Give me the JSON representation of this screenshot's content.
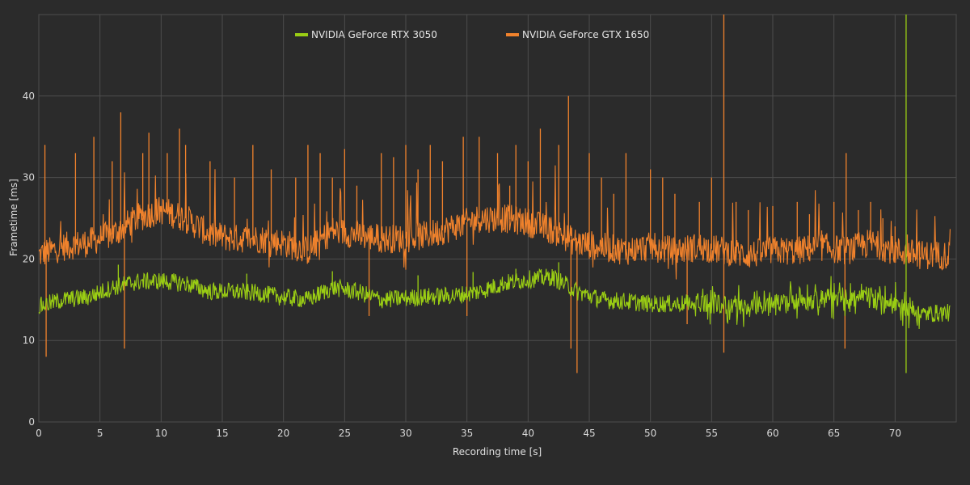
{
  "chart_data": {
    "type": "line",
    "xlabel": "Recording time [s]",
    "ylabel": "Frametime [ms]",
    "xlim": [
      0,
      75
    ],
    "ylim": [
      0,
      50
    ],
    "x_ticks": [
      "0",
      "5",
      "10",
      "15",
      "20",
      "25",
      "30",
      "35",
      "40",
      "45",
      "50",
      "55",
      "60",
      "65",
      "70"
    ],
    "y_ticks": [
      "0",
      "10",
      "20",
      "30",
      "40"
    ],
    "grid": true,
    "legend_position": "top-center",
    "series": [
      {
        "name": "NVIDIA GeForce RTX 3050",
        "color": "#9acd14",
        "baseline": [
          [
            0,
            14.2
          ],
          [
            2,
            15
          ],
          [
            4,
            15.3
          ],
          [
            6,
            16.5
          ],
          [
            8,
            17.2
          ],
          [
            10,
            17.3
          ],
          [
            12,
            17
          ],
          [
            14,
            16
          ],
          [
            16,
            16
          ],
          [
            18,
            15.8
          ],
          [
            20,
            15.3
          ],
          [
            22,
            15
          ],
          [
            24,
            16.5
          ],
          [
            26,
            16
          ],
          [
            28,
            15
          ],
          [
            30,
            15.2
          ],
          [
            32,
            15.4
          ],
          [
            34,
            15.5
          ],
          [
            36,
            16
          ],
          [
            38,
            17
          ],
          [
            40,
            17.5
          ],
          [
            42,
            17.8
          ],
          [
            44,
            16
          ],
          [
            46,
            15
          ],
          [
            48,
            14.8
          ],
          [
            50,
            14.5
          ],
          [
            52,
            14.5
          ],
          [
            54,
            14.6
          ],
          [
            56,
            14.4
          ],
          [
            58,
            14.2
          ],
          [
            60,
            14.5
          ],
          [
            62,
            14.8
          ],
          [
            64,
            15
          ],
          [
            66,
            15.2
          ],
          [
            68,
            15
          ],
          [
            70,
            14.6
          ],
          [
            72,
            13.2
          ],
          [
            74,
            13.4
          ]
        ],
        "spikes": [
          [
            6.5,
            19.3
          ],
          [
            17,
            18.2
          ],
          [
            24,
            18.5
          ],
          [
            31,
            18
          ],
          [
            35.5,
            18.4
          ],
          [
            39,
            18.8
          ],
          [
            42.5,
            19.6
          ],
          [
            70.9,
            50
          ],
          [
            70.9,
            6
          ]
        ]
      },
      {
        "name": "NVIDIA GeForce GTX 1650",
        "color": "#f0822c",
        "baseline": [
          [
            0,
            20.5
          ],
          [
            1,
            21
          ],
          [
            2,
            21.5
          ],
          [
            4,
            22
          ],
          [
            6,
            23
          ],
          [
            8,
            25
          ],
          [
            10,
            26
          ],
          [
            12,
            25
          ],
          [
            14,
            23
          ],
          [
            16,
            22.5
          ],
          [
            18,
            22.5
          ],
          [
            20,
            22
          ],
          [
            21,
            21.5
          ],
          [
            22,
            21
          ],
          [
            24,
            23.5
          ],
          [
            26,
            23
          ],
          [
            28,
            22.5
          ],
          [
            30,
            22.5
          ],
          [
            32,
            23
          ],
          [
            34,
            24
          ],
          [
            36,
            25
          ],
          [
            38,
            25
          ],
          [
            40,
            24.5
          ],
          [
            42,
            23.5
          ],
          [
            44,
            22
          ],
          [
            46,
            21.5
          ],
          [
            48,
            21
          ],
          [
            50,
            21.5
          ],
          [
            52,
            21
          ],
          [
            54,
            21.5
          ],
          [
            56,
            21
          ],
          [
            58,
            20.5
          ],
          [
            60,
            21
          ],
          [
            62,
            21
          ],
          [
            64,
            21.5
          ],
          [
            66,
            21
          ],
          [
            68,
            22
          ],
          [
            70,
            21
          ],
          [
            72,
            20.5
          ],
          [
            74,
            20.5
          ]
        ],
        "spikes": [
          [
            0.5,
            34
          ],
          [
            0.6,
            8
          ],
          [
            3,
            33
          ],
          [
            4.5,
            35
          ],
          [
            6,
            32
          ],
          [
            6.7,
            38
          ],
          [
            7,
            9
          ],
          [
            8.5,
            33
          ],
          [
            9,
            35.5
          ],
          [
            10.5,
            33
          ],
          [
            11.5,
            36
          ],
          [
            12,
            34
          ],
          [
            14,
            32
          ],
          [
            16,
            30
          ],
          [
            17.5,
            34
          ],
          [
            19,
            31
          ],
          [
            21,
            30
          ],
          [
            22,
            34
          ],
          [
            23,
            33
          ],
          [
            24,
            30
          ],
          [
            25,
            33.5
          ],
          [
            26,
            29
          ],
          [
            27,
            13
          ],
          [
            28,
            33
          ],
          [
            29,
            32.5
          ],
          [
            30,
            34
          ],
          [
            31,
            31
          ],
          [
            32,
            34
          ],
          [
            33,
            32
          ],
          [
            34.7,
            35
          ],
          [
            35,
            13
          ],
          [
            36,
            35
          ],
          [
            37.5,
            33
          ],
          [
            38.5,
            29
          ],
          [
            39,
            34
          ],
          [
            40,
            32
          ],
          [
            41,
            36
          ],
          [
            42.5,
            34
          ],
          [
            43.3,
            40
          ],
          [
            43.5,
            9
          ],
          [
            44,
            6
          ],
          [
            45,
            33
          ],
          [
            46,
            30
          ],
          [
            47,
            28
          ],
          [
            48,
            33
          ],
          [
            50,
            31
          ],
          [
            51,
            30
          ],
          [
            52,
            28
          ],
          [
            53,
            12
          ],
          [
            54,
            27
          ],
          [
            55,
            30
          ],
          [
            56,
            50
          ],
          [
            56,
            8.5
          ],
          [
            57,
            27
          ],
          [
            58,
            26
          ],
          [
            60,
            26.5
          ],
          [
            62,
            27
          ],
          [
            63,
            25.5
          ],
          [
            64,
            23.5
          ],
          [
            65,
            27
          ],
          [
            65.9,
            9
          ],
          [
            66,
            33
          ],
          [
            67,
            26
          ],
          [
            68,
            27
          ],
          [
            69,
            25
          ],
          [
            70,
            24
          ],
          [
            71,
            23
          ],
          [
            72,
            22
          ]
        ]
      }
    ]
  }
}
